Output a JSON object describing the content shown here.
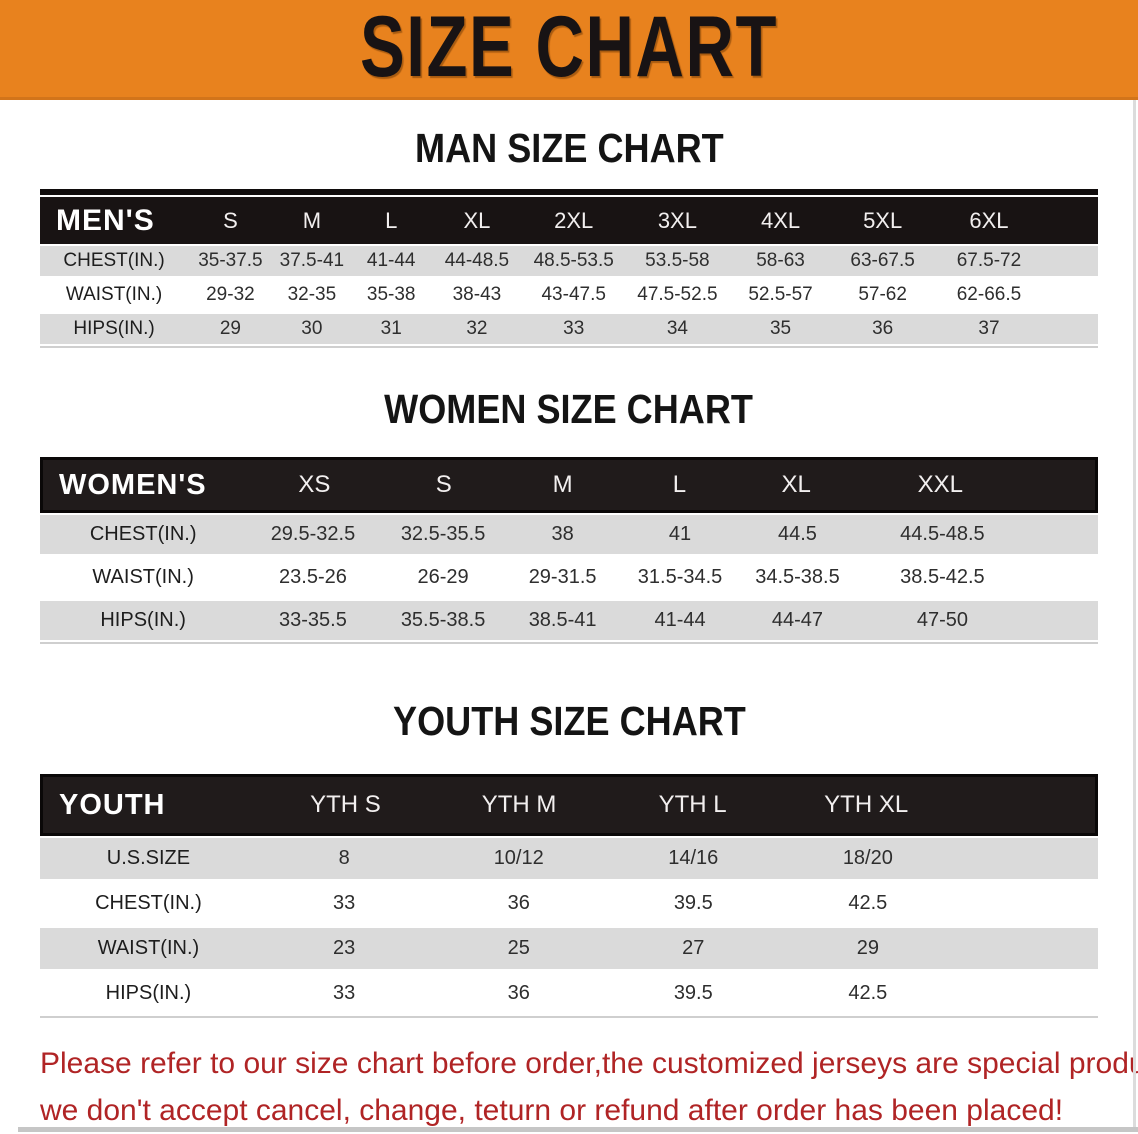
{
  "banner": {
    "title": "SIZE CHART"
  },
  "colors": {
    "banner_orange": "#E8821E",
    "header_black": "#181313",
    "row_gray": "#DADADA",
    "note_red": "#B02425"
  },
  "sections": [
    {
      "id": "men",
      "heading": "MAN SIZE CHART",
      "table": {
        "label": "MEN'S",
        "columns": [
          "S",
          "M",
          "L",
          "XL",
          "2XL",
          "3XL",
          "4XL",
          "5XL",
          "6XL"
        ],
        "rows": [
          {
            "label": "CHEST(IN.)",
            "values": [
              "35-37.5",
              "37.5-41",
              "41-44",
              "44-48.5",
              "48.5-53.5",
              "53.5-58",
              "58-63",
              "63-67.5",
              "67.5-72"
            ]
          },
          {
            "label": "WAIST(IN.)",
            "values": [
              "29-32",
              "32-35",
              "35-38",
              "38-43",
              "43-47.5",
              "47.5-52.5",
              "52.5-57",
              "57-62",
              "62-66.5"
            ]
          },
          {
            "label": "HIPS(IN.)",
            "values": [
              "29",
              "30",
              "31",
              "32",
              "33",
              "34",
              "35",
              "36",
              "37"
            ]
          }
        ]
      }
    },
    {
      "id": "women",
      "heading": "WOMEN SIZE CHART",
      "table": {
        "label": "WOMEN'S",
        "columns": [
          "XS",
          "S",
          "M",
          "L",
          "XL",
          "XXL"
        ],
        "rows": [
          {
            "label": "CHEST(IN.)",
            "values": [
              "29.5-32.5",
              "32.5-35.5",
              "38",
              "41",
              "44.5",
              "44.5-48.5"
            ]
          },
          {
            "label": "WAIST(IN.)",
            "values": [
              "23.5-26",
              "26-29",
              "29-31.5",
              "31.5-34.5",
              "34.5-38.5",
              "38.5-42.5"
            ]
          },
          {
            "label": "HIPS(IN.)",
            "values": [
              "33-35.5",
              "35.5-38.5",
              "38.5-41",
              "41-44",
              "44-47",
              "47-50"
            ]
          }
        ]
      }
    },
    {
      "id": "youth",
      "heading": "YOUTH SIZE CHART",
      "table": {
        "label": "YOUTH",
        "columns": [
          "YTH S",
          "YTH M",
          "YTH L",
          "YTH XL"
        ],
        "rows": [
          {
            "label": "U.S.SIZE",
            "values": [
              "8",
              "10/12",
              "14/16",
              "18/20"
            ]
          },
          {
            "label": "CHEST(IN.)",
            "values": [
              "33",
              "36",
              "39.5",
              "42.5"
            ]
          },
          {
            "label": "WAIST(IN.)",
            "values": [
              "23",
              "25",
              "27",
              "29"
            ]
          },
          {
            "label": "HIPS(IN.)",
            "values": [
              "33",
              "36",
              "39.5",
              "42.5"
            ]
          }
        ]
      }
    }
  ],
  "note": {
    "lines": [
      "Please refer to our size chart before order,the customized jerseys are special products,",
      "we don't accept cancel, change, teturn or refund after order has been placed!"
    ]
  }
}
